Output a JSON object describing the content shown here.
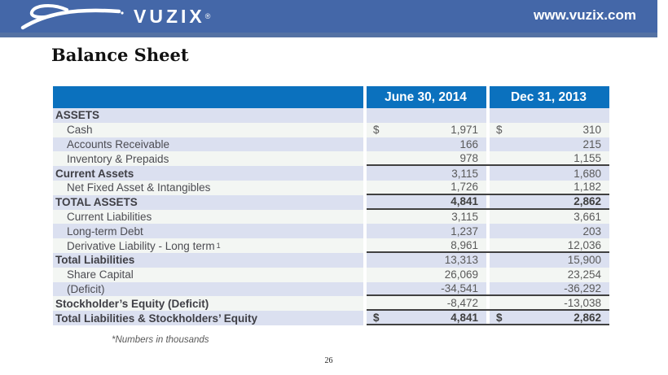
{
  "header": {
    "brand": "VUZIX",
    "reg": "®",
    "website": "www.vuzix.com",
    "bg_color": "#4467A8",
    "strip_color": "#5471A3"
  },
  "page": {
    "title": "Balance Sheet",
    "footnote": "*Numbers in thousands",
    "page_number": "26"
  },
  "table": {
    "header_bg": "#0B71BE",
    "band_colors": {
      "odd": "#DBE0F0",
      "even": "#F3F6F3"
    },
    "border_color": "#404040",
    "columns": [
      "",
      "June 30, 2014",
      "Dec 31, 2013"
    ],
    "rows": [
      {
        "label": "ASSETS",
        "d1": "",
        "v1": "",
        "d2": "",
        "v2": "",
        "bold": true,
        "bold_values": false,
        "indent": false,
        "line": false,
        "sup": ""
      },
      {
        "label": "Cash",
        "d1": "$",
        "v1": "1,971",
        "d2": "$",
        "v2": "310",
        "bold": false,
        "bold_values": false,
        "indent": true,
        "line": false,
        "sup": ""
      },
      {
        "label": "Accounts Receivable",
        "d1": "",
        "v1": "166",
        "d2": "",
        "v2": "215",
        "bold": false,
        "bold_values": false,
        "indent": true,
        "line": false,
        "sup": ""
      },
      {
        "label": "Inventory & Prepaids",
        "d1": "",
        "v1": "978",
        "d2": "",
        "v2": "1,155",
        "bold": false,
        "bold_values": false,
        "indent": true,
        "line": true,
        "sup": ""
      },
      {
        "label": "Current Assets",
        "d1": "",
        "v1": "3,115",
        "d2": "",
        "v2": "1,680",
        "bold": true,
        "bold_values": false,
        "indent": false,
        "line": false,
        "sup": ""
      },
      {
        "label": "Net Fixed Asset & Intangibles",
        "d1": "",
        "v1": "1,726",
        "d2": "",
        "v2": "1,182",
        "bold": false,
        "bold_values": false,
        "indent": true,
        "line": true,
        "sup": ""
      },
      {
        "label": "TOTAL ASSETS",
        "d1": "",
        "v1": "4,841",
        "d2": "",
        "v2": "2,862",
        "bold": true,
        "bold_values": true,
        "indent": false,
        "line": true,
        "sup": ""
      },
      {
        "label": "Current Liabilities",
        "d1": "",
        "v1": "3,115",
        "d2": "",
        "v2": "3,661",
        "bold": false,
        "bold_values": false,
        "indent": true,
        "line": false,
        "sup": ""
      },
      {
        "label": "Long-term Debt",
        "d1": "",
        "v1": "1,237",
        "d2": "",
        "v2": "203",
        "bold": false,
        "bold_values": false,
        "indent": true,
        "line": false,
        "sup": ""
      },
      {
        "label": "Derivative Liability - Long term",
        "d1": "",
        "v1": "8,961",
        "d2": "",
        "v2": "12,036",
        "bold": false,
        "bold_values": false,
        "indent": true,
        "line": true,
        "sup": "1"
      },
      {
        "label": "Total Liabilities",
        "d1": "",
        "v1": "13,313",
        "d2": "",
        "v2": "15,900",
        "bold": true,
        "bold_values": false,
        "indent": false,
        "line": false,
        "sup": ""
      },
      {
        "label": "Share Capital",
        "d1": "",
        "v1": "26,069",
        "d2": "",
        "v2": "23,254",
        "bold": false,
        "bold_values": false,
        "indent": true,
        "line": false,
        "sup": ""
      },
      {
        "label": "(Deficit)",
        "d1": "",
        "v1": "-34,541",
        "d2": "",
        "v2": "-36,292",
        "bold": false,
        "bold_values": false,
        "indent": true,
        "line": true,
        "sup": ""
      },
      {
        "label": "Stockholder’s Equity (Deficit)",
        "d1": "",
        "v1": "-8,472",
        "d2": "",
        "v2": "-13,038",
        "bold": true,
        "bold_values": false,
        "indent": false,
        "line": true,
        "sup": ""
      },
      {
        "label": "Total Liabilities & Stockholders’ Equity",
        "d1": "$",
        "v1": "4,841",
        "d2": "$",
        "v2": "2,862",
        "bold": true,
        "bold_values": true,
        "indent": false,
        "line": true,
        "sup": ""
      }
    ]
  }
}
